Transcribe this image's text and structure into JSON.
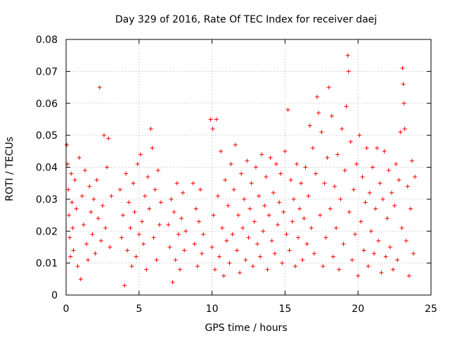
{
  "chart_data": {
    "type": "scatter",
    "title": "Day 329 of 2016, Rate Of TEC Index for receiver daej",
    "xlabel": "GPS time / hours",
    "ylabel": "ROTI / TECUs",
    "xlim": [
      0,
      25
    ],
    "ylim": [
      0,
      0.08
    ],
    "x_ticks": [
      0,
      5,
      10,
      15,
      20,
      25
    ],
    "x_tick_labels": [
      "0",
      "5",
      "10",
      "15",
      "20",
      "25"
    ],
    "y_ticks": [
      0,
      0.01,
      0.02,
      0.03,
      0.04,
      0.05,
      0.06,
      0.07,
      0.08
    ],
    "y_tick_labels": [
      "0",
      "0.01",
      "0.02",
      "0.03",
      "0.04",
      "0.05",
      "0.06",
      "0.07",
      "0.08"
    ],
    "grid": true,
    "marker": "plus",
    "marker_color": "#ff0000",
    "series": [
      {
        "points": [
          [
            0.05,
            0.047
          ],
          [
            0.1,
            0.041
          ],
          [
            0.15,
            0.033
          ],
          [
            0.2,
            0.025
          ],
          [
            0.25,
            0.018
          ],
          [
            0.3,
            0.012
          ],
          [
            0.35,
            0.038
          ],
          [
            0.4,
            0.029
          ],
          [
            0.45,
            0.021
          ],
          [
            0.5,
            0.014
          ],
          [
            0.6,
            0.036
          ],
          [
            0.7,
            0.027
          ],
          [
            0.8,
            0.009
          ],
          [
            0.9,
            0.043
          ],
          [
            1.0,
            0.005
          ],
          [
            1.1,
            0.031
          ],
          [
            1.2,
            0.022
          ],
          [
            1.3,
            0.039
          ],
          [
            1.4,
            0.016
          ],
          [
            1.5,
            0.011
          ],
          [
            1.6,
            0.034
          ],
          [
            1.7,
            0.026
          ],
          [
            1.8,
            0.019
          ],
          [
            1.9,
            0.03
          ],
          [
            2.0,
            0.013
          ],
          [
            2.1,
            0.036
          ],
          [
            2.2,
            0.024
          ],
          [
            2.3,
            0.065
          ],
          [
            2.4,
            0.017
          ],
          [
            2.5,
            0.028
          ],
          [
            2.6,
            0.05
          ],
          [
            2.7,
            0.021
          ],
          [
            2.8,
            0.04
          ],
          [
            2.9,
            0.049
          ],
          [
            3.0,
            0.015
          ],
          [
            3.1,
            0.031
          ],
          [
            3.7,
            0.033
          ],
          [
            3.8,
            0.018
          ],
          [
            3.9,
            0.025
          ],
          [
            4.0,
            0.003
          ],
          [
            4.1,
            0.038
          ],
          [
            4.2,
            0.014
          ],
          [
            4.3,
            0.029
          ],
          [
            4.4,
            0.021
          ],
          [
            4.5,
            0.009
          ],
          [
            4.6,
            0.035
          ],
          [
            4.7,
            0.026
          ],
          [
            4.8,
            0.012
          ],
          [
            4.9,
            0.041
          ],
          [
            5.0,
            0.019
          ],
          [
            5.1,
            0.044
          ],
          [
            5.2,
            0.023
          ],
          [
            5.3,
            0.016
          ],
          [
            5.4,
            0.031
          ],
          [
            5.5,
            0.008
          ],
          [
            5.6,
            0.037
          ],
          [
            5.7,
            0.027
          ],
          [
            5.8,
            0.052
          ],
          [
            5.9,
            0.046
          ],
          [
            6.0,
            0.018
          ],
          [
            6.1,
            0.033
          ],
          [
            6.2,
            0.011
          ],
          [
            6.3,
            0.039
          ],
          [
            6.4,
            0.022
          ],
          [
            6.5,
            0.029
          ],
          [
            7.0,
            0.022
          ],
          [
            7.1,
            0.015
          ],
          [
            7.2,
            0.03
          ],
          [
            7.3,
            0.004
          ],
          [
            7.4,
            0.026
          ],
          [
            7.5,
            0.011
          ],
          [
            7.6,
            0.035
          ],
          [
            7.7,
            0.019
          ],
          [
            7.8,
            0.008
          ],
          [
            7.9,
            0.024
          ],
          [
            8.0,
            0.032
          ],
          [
            8.1,
            0.014
          ],
          [
            8.2,
            0.02
          ],
          [
            8.7,
            0.035
          ],
          [
            8.8,
            0.016
          ],
          [
            8.9,
            0.027
          ],
          [
            9.0,
            0.009
          ],
          [
            9.1,
            0.023
          ],
          [
            9.2,
            0.033
          ],
          [
            9.3,
            0.013
          ],
          [
            9.4,
            0.019
          ],
          [
            9.9,
            0.055
          ],
          [
            10.0,
            0.015
          ],
          [
            10.05,
            0.052
          ],
          [
            10.1,
            0.025
          ],
          [
            10.2,
            0.008
          ],
          [
            10.3,
            0.055
          ],
          [
            10.4,
            0.031
          ],
          [
            10.5,
            0.012
          ],
          [
            10.6,
            0.045
          ],
          [
            10.7,
            0.021
          ],
          [
            10.8,
            0.006
          ],
          [
            10.9,
            0.036
          ],
          [
            11.0,
            0.017
          ],
          [
            11.1,
            0.028
          ],
          [
            11.2,
            0.01
          ],
          [
            11.3,
            0.041
          ],
          [
            11.4,
            0.019
          ],
          [
            11.5,
            0.033
          ],
          [
            11.6,
            0.047
          ],
          [
            11.7,
            0.014
          ],
          [
            11.8,
            0.025
          ],
          [
            11.9,
            0.007
          ],
          [
            12.0,
            0.038
          ],
          [
            12.1,
            0.021
          ],
          [
            12.2,
            0.03
          ],
          [
            12.3,
            0.011
          ],
          [
            12.4,
            0.042
          ],
          [
            12.5,
            0.018
          ],
          [
            12.6,
            0.027
          ],
          [
            12.7,
            0.035
          ],
          [
            12.8,
            0.009
          ],
          [
            12.9,
            0.023
          ],
          [
            13.0,
            0.04
          ],
          [
            13.1,
            0.016
          ],
          [
            13.2,
            0.031
          ],
          [
            13.3,
            0.012
          ],
          [
            13.4,
            0.044
          ],
          [
            13.5,
            0.02
          ],
          [
            13.6,
            0.028
          ],
          [
            13.7,
            0.037
          ],
          [
            13.8,
            0.008
          ],
          [
            13.9,
            0.025
          ],
          [
            14.0,
            0.043
          ],
          [
            14.1,
            0.017
          ],
          [
            14.2,
            0.032
          ],
          [
            14.3,
            0.013
          ],
          [
            14.4,
            0.041
          ],
          [
            14.5,
            0.022
          ],
          [
            14.6,
            0.029
          ],
          [
            14.7,
            0.038
          ],
          [
            14.8,
            0.01
          ],
          [
            14.9,
            0.026
          ],
          [
            15.0,
            0.045
          ],
          [
            15.1,
            0.019
          ],
          [
            15.2,
            0.058
          ],
          [
            15.3,
            0.014
          ],
          [
            15.4,
            0.036
          ],
          [
            15.5,
            0.023
          ],
          [
            15.6,
            0.03
          ],
          [
            15.7,
            0.009
          ],
          [
            15.8,
            0.041
          ],
          [
            15.9,
            0.018
          ],
          [
            16.0,
            0.027
          ],
          [
            16.1,
            0.035
          ],
          [
            16.2,
            0.011
          ],
          [
            16.3,
            0.024
          ],
          [
            16.4,
            0.04
          ],
          [
            16.5,
            0.016
          ],
          [
            16.6,
            0.031
          ],
          [
            16.7,
            0.053
          ],
          [
            16.8,
            0.021
          ],
          [
            16.9,
            0.046
          ],
          [
            17.0,
            0.013
          ],
          [
            17.1,
            0.038
          ],
          [
            17.2,
            0.062
          ],
          [
            17.3,
            0.057
          ],
          [
            17.4,
            0.025
          ],
          [
            17.5,
            0.051
          ],
          [
            17.6,
            0.009
          ],
          [
            17.7,
            0.035
          ],
          [
            17.8,
            0.018
          ],
          [
            17.9,
            0.043
          ],
          [
            18.0,
            0.065
          ],
          [
            18.1,
            0.027
          ],
          [
            18.2,
            0.056
          ],
          [
            18.3,
            0.012
          ],
          [
            18.4,
            0.034
          ],
          [
            18.5,
            0.021
          ],
          [
            18.6,
            0.044
          ],
          [
            18.7,
            0.008
          ],
          [
            18.8,
            0.03
          ],
          [
            18.9,
            0.052
          ],
          [
            19.0,
            0.016
          ],
          [
            19.1,
            0.039
          ],
          [
            19.2,
            0.059
          ],
          [
            19.3,
            0.075
          ],
          [
            19.35,
            0.07
          ],
          [
            19.4,
            0.026
          ],
          [
            19.5,
            0.048
          ],
          [
            19.6,
            0.011
          ],
          [
            19.7,
            0.033
          ],
          [
            19.8,
            0.019
          ],
          [
            19.9,
            0.041
          ],
          [
            20.0,
            0.006
          ],
          [
            20.1,
            0.05
          ],
          [
            20.2,
            0.023
          ],
          [
            20.3,
            0.037
          ],
          [
            20.4,
            0.014
          ],
          [
            20.5,
            0.029
          ],
          [
            20.6,
            0.046
          ],
          [
            20.7,
            0.009
          ],
          [
            20.8,
            0.032
          ],
          [
            20.9,
            0.02
          ],
          [
            21.0,
            0.04
          ],
          [
            21.1,
            0.013
          ],
          [
            21.2,
            0.027
          ],
          [
            21.3,
            0.046
          ],
          [
            21.4,
            0.017
          ],
          [
            21.5,
            0.035
          ],
          [
            21.6,
            0.007
          ],
          [
            21.7,
            0.03
          ],
          [
            21.8,
            0.045
          ],
          [
            21.9,
            0.012
          ],
          [
            22.0,
            0.024
          ],
          [
            22.1,
            0.039
          ],
          [
            22.2,
            0.015
          ],
          [
            22.3,
            0.032
          ],
          [
            22.4,
            0.008
          ],
          [
            22.5,
            0.028
          ],
          [
            22.6,
            0.041
          ],
          [
            22.7,
            0.011
          ],
          [
            22.8,
            0.036
          ],
          [
            22.9,
            0.051
          ],
          [
            23.0,
            0.021
          ],
          [
            23.05,
            0.071
          ],
          [
            23.1,
            0.066
          ],
          [
            23.15,
            0.06
          ],
          [
            23.2,
            0.052
          ],
          [
            23.3,
            0.017
          ],
          [
            23.4,
            0.034
          ],
          [
            23.5,
            0.006
          ],
          [
            23.6,
            0.027
          ],
          [
            23.7,
            0.042
          ],
          [
            23.8,
            0.013
          ],
          [
            23.9,
            0.037
          ]
        ]
      }
    ]
  }
}
